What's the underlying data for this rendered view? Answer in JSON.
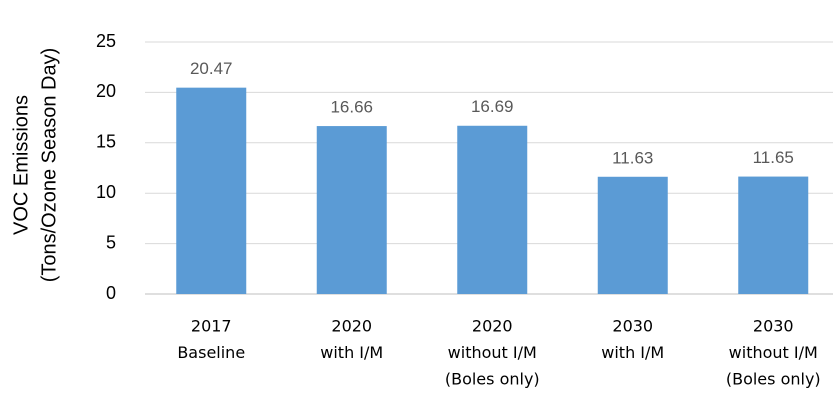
{
  "chart_data": {
    "type": "bar",
    "y_label": [
      "VOC Emissions",
      "(Tons/Ozone Season Day)"
    ],
    "categories": [
      [
        "2017",
        "Baseline"
      ],
      [
        "2020",
        "with I/M"
      ],
      [
        "2020",
        "without I/M",
        "(Boles only)"
      ],
      [
        "2030",
        "with I/M"
      ],
      [
        "2030",
        "without I/M",
        "(Boles only)"
      ]
    ],
    "values": [
      20.47,
      16.66,
      16.69,
      11.63,
      11.65
    ],
    "color": "#5b9bd5",
    "ylim": [
      0,
      25
    ],
    "yticks": [
      0,
      5,
      10,
      15,
      20,
      25
    ],
    "grid": true
  }
}
